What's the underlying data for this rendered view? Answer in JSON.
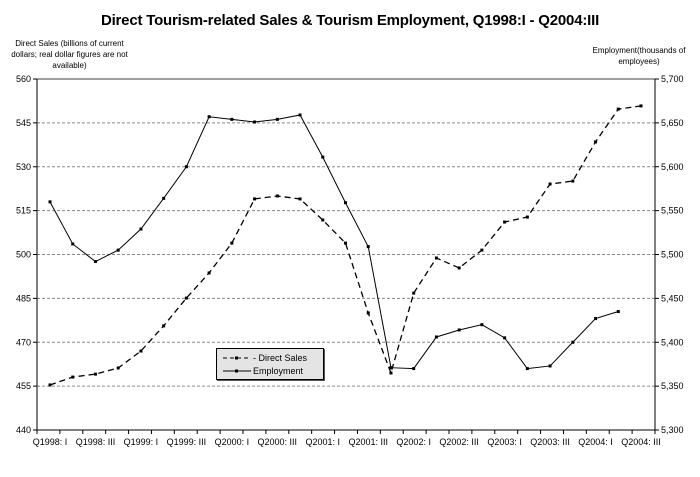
{
  "chart_data": {
    "type": "line",
    "title": "Direct Tourism-related Sales & Tourism Employment, Q1998:I - Q2004:III",
    "xlabel": "",
    "ylabel": "Direct Sales (billions of current dollars; real dollar figures are not available)",
    "y2label": "Employment(thousands of employees)",
    "ylim": [
      440,
      560
    ],
    "y2lim": [
      5300,
      5700
    ],
    "yticks": [
      440,
      455,
      470,
      485,
      500,
      515,
      530,
      545,
      560
    ],
    "y2ticks": [
      "5,300",
      "5,350",
      "5,400",
      "5,450",
      "5,500",
      "5,550",
      "5,600",
      "5,650",
      "5,700"
    ],
    "grid": true,
    "legend_position": "inside-bottom-left",
    "x": [
      "Q1998:I",
      "Q1998:II",
      "Q1998:III",
      "Q1998:IV",
      "Q1999:I",
      "Q1999:II",
      "Q1999:III",
      "Q1999:IV",
      "Q2000:I",
      "Q2000:II",
      "Q2000:III",
      "Q2000:IV",
      "Q2001:I",
      "Q2001:II",
      "Q2001:III",
      "Q2001:IV",
      "Q2002:I",
      "Q2002:II",
      "Q2002:III",
      "Q2002:IV",
      "Q2003:I",
      "Q2003:II",
      "Q2003:III",
      "Q2003:IV",
      "Q2004:I",
      "Q2004:II",
      "Q2004:III"
    ],
    "xtick_labels": [
      "Q1998: I",
      "Q1998: III",
      "Q1999: I",
      "Q1999: III",
      "Q2000: I",
      "Q2000: III",
      "Q2001: I",
      "Q2001: III",
      "Q2002: I",
      "Q2002: III",
      "Q2003: I",
      "Q2003: III",
      "Q2004: I",
      "Q2004: III"
    ],
    "series": [
      {
        "name": "Direct Sales",
        "axis": "left",
        "style": "dashed",
        "values": [
          455.4,
          458.1,
          459.1,
          461.2,
          467.0,
          475.6,
          485.1,
          493.7,
          503.9,
          519.0,
          520.0,
          519.0,
          511.8,
          503.9,
          480.0,
          459.5,
          486.8,
          498.8,
          495.4,
          501.5,
          511.1,
          512.8,
          524.1,
          525.1,
          538.5,
          549.7,
          550.8
        ]
      },
      {
        "name": "Employment",
        "axis": "right",
        "style": "solid",
        "values": [
          5560,
          5512,
          5492,
          5505,
          5529,
          5564,
          5600,
          5657,
          5654,
          5651,
          5654,
          5659,
          5611,
          5559,
          5509,
          5371,
          5370,
          5406,
          5414,
          5420,
          5405,
          5370,
          5373,
          5400,
          5427,
          5435,
          null
        ]
      }
    ]
  },
  "legend": {
    "items": [
      "- Direct Sales",
      "Employment"
    ]
  }
}
